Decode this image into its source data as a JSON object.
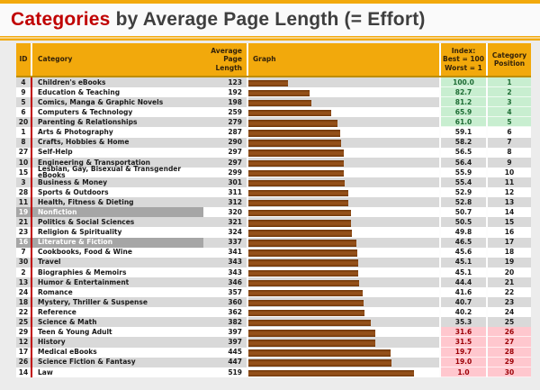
{
  "title": {
    "highlight": "Categories",
    "rest": " by Average Page Length (= Effort)"
  },
  "colors": {
    "gold": "#F2A90C",
    "bar_brown": "#8A4512",
    "stripe_gray": "#D9D9D9",
    "highlight_gray": "#A6A6A6",
    "good_bg": "#C8EED0",
    "good_text": "#1E6B34",
    "bad_bg": "#FFC7CE",
    "bad_text": "#9C0006",
    "id_separator_red": "#C00000",
    "title_accent": "#C00000"
  },
  "table": {
    "headers": {
      "id": "ID",
      "category": "Category",
      "avg": "Average\nPage\nLength",
      "graph": "Graph",
      "index": "Index:\nBest = 100\nWorst = 1",
      "position": "Category\nPosition"
    },
    "rows": [
      {
        "id": 4,
        "category": "Children's eBooks",
        "length": 123,
        "index": "100.0",
        "position": 1,
        "status": "good"
      },
      {
        "id": 9,
        "category": "Education & Teaching",
        "length": 192,
        "index": "82.7",
        "position": 2,
        "status": "good"
      },
      {
        "id": 5,
        "category": "Comics, Manga & Graphic Novels",
        "length": 198,
        "index": "81.2",
        "position": 3,
        "status": "good"
      },
      {
        "id": 6,
        "category": "Computers & Technology",
        "length": 259,
        "index": "65.9",
        "position": 4,
        "status": "good"
      },
      {
        "id": 20,
        "category": "Parenting & Relationships",
        "length": 279,
        "index": "61.0",
        "position": 5,
        "status": "good"
      },
      {
        "id": 1,
        "category": "Arts & Photography",
        "length": 287,
        "index": "59.1",
        "position": 6,
        "status": "normal"
      },
      {
        "id": 8,
        "category": "Crafts, Hobbies & Home",
        "length": 290,
        "index": "58.2",
        "position": 7,
        "status": "normal"
      },
      {
        "id": 27,
        "category": "Self-Help",
        "length": 297,
        "index": "56.5",
        "position": 8,
        "status": "normal"
      },
      {
        "id": 10,
        "category": "Engineering & Transportation",
        "length": 297,
        "index": "56.4",
        "position": 9,
        "status": "normal"
      },
      {
        "id": 15,
        "category": "Lesbian, Gay, Bisexual & Transgender eBooks",
        "length": 299,
        "index": "55.9",
        "position": 10,
        "status": "normal"
      },
      {
        "id": 3,
        "category": "Business & Money",
        "length": 301,
        "index": "55.4",
        "position": 11,
        "status": "normal"
      },
      {
        "id": 28,
        "category": "Sports & Outdoors",
        "length": 311,
        "index": "52.9",
        "position": 12,
        "status": "normal"
      },
      {
        "id": 11,
        "category": "Health, Fitness & Dieting",
        "length": 312,
        "index": "52.8",
        "position": 13,
        "status": "normal"
      },
      {
        "id": 19,
        "category": "Nonfiction",
        "length": 320,
        "index": "50.7",
        "position": 14,
        "status": "highlight"
      },
      {
        "id": 21,
        "category": "Politics & Social Sciences",
        "length": 321,
        "index": "50.5",
        "position": 15,
        "status": "normal"
      },
      {
        "id": 23,
        "category": "Religion & Spirituality",
        "length": 324,
        "index": "49.8",
        "position": 16,
        "status": "normal"
      },
      {
        "id": 16,
        "category": "Literature & Fiction",
        "length": 337,
        "index": "46.5",
        "position": 17,
        "status": "highlight"
      },
      {
        "id": 7,
        "category": "Cookbooks, Food & Wine",
        "length": 341,
        "index": "45.6",
        "position": 18,
        "status": "normal"
      },
      {
        "id": 30,
        "category": "Travel",
        "length": 343,
        "index": "45.1",
        "position": 19,
        "status": "normal"
      },
      {
        "id": 2,
        "category": "Biographies & Memoirs",
        "length": 343,
        "index": "45.1",
        "position": 20,
        "status": "normal"
      },
      {
        "id": 13,
        "category": "Humor & Entertainment",
        "length": 346,
        "index": "44.4",
        "position": 21,
        "status": "normal"
      },
      {
        "id": 24,
        "category": "Romance",
        "length": 357,
        "index": "41.6",
        "position": 22,
        "status": "normal"
      },
      {
        "id": 18,
        "category": "Mystery, Thriller & Suspense",
        "length": 360,
        "index": "40.7",
        "position": 23,
        "status": "normal"
      },
      {
        "id": 22,
        "category": "Reference",
        "length": 362,
        "index": "40.2",
        "position": 24,
        "status": "normal"
      },
      {
        "id": 25,
        "category": "Science & Math",
        "length": 382,
        "index": "35.3",
        "position": 25,
        "status": "normal"
      },
      {
        "id": 29,
        "category": "Teen & Young Adult",
        "length": 397,
        "index": "31.6",
        "position": 26,
        "status": "bad"
      },
      {
        "id": 12,
        "category": "History",
        "length": 397,
        "index": "31.5",
        "position": 27,
        "status": "bad"
      },
      {
        "id": 17,
        "category": "Medical eBooks",
        "length": 445,
        "index": "19.7",
        "position": 28,
        "status": "bad"
      },
      {
        "id": 26,
        "category": "Science Fiction & Fantasy",
        "length": 447,
        "index": "19.0",
        "position": 29,
        "status": "bad"
      },
      {
        "id": 14,
        "category": "Law",
        "length": 519,
        "index": "1.0",
        "position": 30,
        "status": "bad"
      }
    ]
  },
  "chart_data": {
    "type": "bar",
    "orientation": "horizontal",
    "title": "Categories by Average Page Length (= Effort)",
    "xlabel": "Average Page Length",
    "ylabel": "Category",
    "xlim": [
      0,
      600
    ],
    "legend": false,
    "grid": false,
    "categories": [
      "Children's eBooks",
      "Education & Teaching",
      "Comics, Manga & Graphic Novels",
      "Computers & Technology",
      "Parenting & Relationships",
      "Arts & Photography",
      "Crafts, Hobbies & Home",
      "Self-Help",
      "Engineering & Transportation",
      "Lesbian, Gay, Bisexual & Transgender eBooks",
      "Business & Money",
      "Sports & Outdoors",
      "Health, Fitness & Dieting",
      "Nonfiction",
      "Politics & Social Sciences",
      "Religion & Spirituality",
      "Literature & Fiction",
      "Cookbooks, Food & Wine",
      "Travel",
      "Biographies & Memoirs",
      "Humor & Entertainment",
      "Romance",
      "Mystery, Thriller & Suspense",
      "Reference",
      "Science & Math",
      "Teen & Young Adult",
      "History",
      "Medical eBooks",
      "Science Fiction & Fantasy",
      "Law"
    ],
    "values": [
      123,
      192,
      198,
      259,
      279,
      287,
      290,
      297,
      297,
      299,
      301,
      311,
      312,
      320,
      321,
      324,
      337,
      341,
      343,
      343,
      346,
      357,
      360,
      362,
      382,
      397,
      397,
      445,
      447,
      519
    ],
    "series": [
      {
        "name": "Average Page Length",
        "values": [
          123,
          192,
          198,
          259,
          279,
          287,
          290,
          297,
          297,
          299,
          301,
          311,
          312,
          320,
          321,
          324,
          337,
          341,
          343,
          343,
          346,
          357,
          360,
          362,
          382,
          397,
          397,
          445,
          447,
          519
        ]
      },
      {
        "name": "Index: Best = 100 Worst = 1",
        "values": [
          100.0,
          82.7,
          81.2,
          65.9,
          61.0,
          59.1,
          58.2,
          56.5,
          56.4,
          55.9,
          55.4,
          52.9,
          52.8,
          50.7,
          50.5,
          49.8,
          46.5,
          45.6,
          45.1,
          45.1,
          44.4,
          41.6,
          40.7,
          40.2,
          35.3,
          31.6,
          31.5,
          19.7,
          19.0,
          1.0
        ]
      },
      {
        "name": "Category Position",
        "values": [
          1,
          2,
          3,
          4,
          5,
          6,
          7,
          8,
          9,
          10,
          11,
          12,
          13,
          14,
          15,
          16,
          17,
          18,
          19,
          20,
          21,
          22,
          23,
          24,
          25,
          26,
          27,
          28,
          29,
          30
        ]
      }
    ]
  }
}
